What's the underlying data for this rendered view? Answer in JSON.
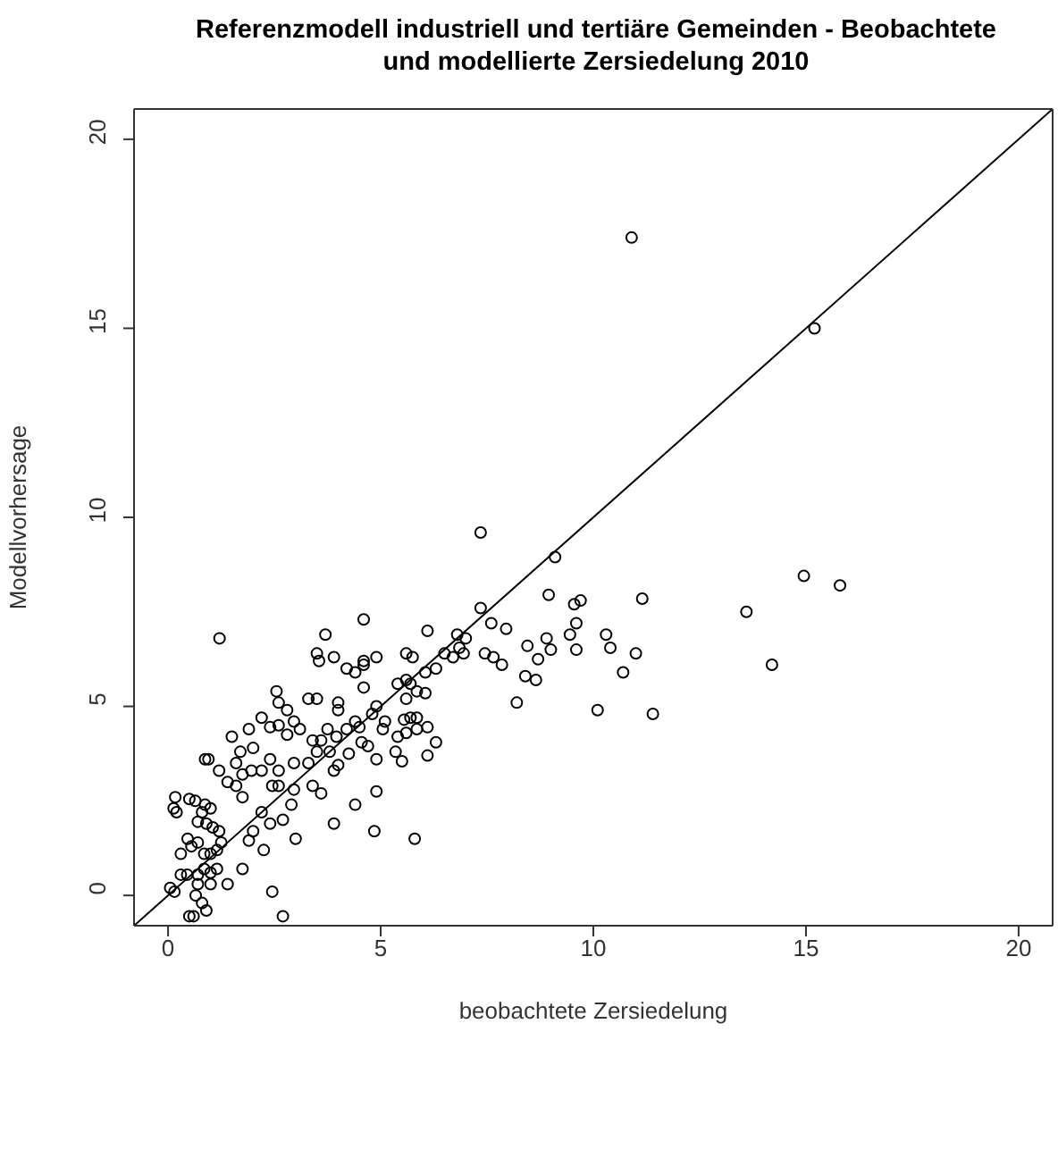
{
  "chart_data": {
    "type": "scatter",
    "title": "Referenzmodell industriell und tertiäre Gemeinden - Beobachtete\nund modellierte Zersiedelung 2010",
    "xlabel": "beobachtete Zersiedelung",
    "ylabel": "Modellvorhersage",
    "xlim": [
      -0.8,
      20.8
    ],
    "ylim": [
      -0.8,
      20.8
    ],
    "xticks": [
      0,
      5,
      10,
      15,
      20
    ],
    "yticks": [
      0,
      5,
      10,
      15,
      20
    ],
    "marker": "circle",
    "series": [
      {
        "color": "#000000",
        "x": [
          1.21,
          3.7,
          4.6,
          3.5,
          3.55,
          3.9,
          4.2,
          4.4,
          4.6,
          2.55,
          2.6,
          2.8,
          3.3,
          3.5,
          4.0,
          4.0,
          4.6,
          1.9,
          2.2,
          2.4,
          2.6,
          2.8,
          2.96,
          3.1,
          3.4,
          3.6,
          3.75,
          3.96,
          4.2,
          4.4,
          1.5,
          1.7,
          1.6,
          0.87,
          0.95,
          1.2,
          2.0,
          1.96,
          2.2,
          2.4,
          2.6,
          2.96,
          3.3,
          3.5,
          3.8,
          4.0,
          4.25,
          3.9,
          1.4,
          1.75,
          1.6,
          1.75,
          2.45,
          2.6,
          2.96,
          3.4,
          3.6,
          4.4,
          3.9,
          2.2,
          2.4,
          2.7,
          2.9,
          3.0,
          2.0,
          2.25,
          1.9,
          1.75,
          1.4,
          2.45,
          2.7,
          0.17,
          0.13,
          0.2,
          0.5,
          0.64,
          0.87,
          0.8,
          1.0,
          0.7,
          0.9,
          1.05,
          1.2,
          0.46,
          0.3,
          0.55,
          0.7,
          0.85,
          1.0,
          1.15,
          1.25,
          0.3,
          0.45,
          0.7,
          0.85,
          1.0,
          1.15,
          0.05,
          0.15,
          0.65,
          0.8,
          0.7,
          1.0,
          0.5,
          0.6,
          0.9,
          7.35,
          9.1,
          8.95,
          9.55,
          9.7,
          9.6,
          9.45,
          9.6,
          7.35,
          7.6,
          7.95,
          6.1,
          6.8,
          7.0,
          6.85,
          6.95,
          6.7,
          6.5,
          6.3,
          7.45,
          7.65,
          7.85,
          8.45,
          8.7,
          8.9,
          9.0,
          8.4,
          8.65,
          8.2,
          5.6,
          5.75,
          6.05,
          4.6,
          4.9,
          5.4,
          5.6,
          5.7,
          5.6,
          5.85,
          6.05,
          4.9,
          4.8,
          4.5,
          5.55,
          5.7,
          5.85,
          5.1,
          5.05,
          5.4,
          5.6,
          5.85,
          6.1,
          4.55,
          4.7,
          6.3,
          6.1,
          5.35,
          5.5,
          4.9,
          4.9,
          4.85,
          5.8,
          10.1,
          10.9,
          15.2,
          14.95,
          15.8,
          11.15,
          13.6,
          10.3,
          10.4,
          11.0,
          10.7,
          14.2,
          11.4
        ],
        "values": [
          6.8,
          6.9,
          7.3,
          6.4,
          6.2,
          6.3,
          6.0,
          5.9,
          6.2,
          5.4,
          5.1,
          4.9,
          5.2,
          5.2,
          5.1,
          4.9,
          5.5,
          4.4,
          4.7,
          4.45,
          4.5,
          4.25,
          4.6,
          4.4,
          4.1,
          4.1,
          4.4,
          4.2,
          4.4,
          4.6,
          4.2,
          3.8,
          3.5,
          3.6,
          3.6,
          3.3,
          3.9,
          3.3,
          3.3,
          3.6,
          3.3,
          3.5,
          3.5,
          3.8,
          3.8,
          3.45,
          3.75,
          3.3,
          3.0,
          3.2,
          2.9,
          2.6,
          2.9,
          2.9,
          2.8,
          2.9,
          2.7,
          2.4,
          1.9,
          2.2,
          1.9,
          2.0,
          2.4,
          1.5,
          1.7,
          1.2,
          1.45,
          0.7,
          0.3,
          0.1,
          -0.55,
          2.6,
          2.3,
          2.2,
          2.55,
          2.5,
          2.4,
          2.2,
          2.3,
          1.95,
          1.9,
          1.8,
          1.7,
          1.5,
          1.1,
          1.3,
          1.4,
          1.1,
          1.1,
          1.2,
          1.4,
          0.55,
          0.55,
          0.55,
          0.7,
          0.6,
          0.7,
          0.2,
          0.1,
          0.0,
          -0.2,
          0.3,
          0.3,
          -0.55,
          -0.55,
          -0.4,
          9.6,
          8.95,
          7.95,
          7.7,
          7.8,
          7.2,
          6.9,
          6.5,
          7.6,
          7.2,
          7.05,
          7.0,
          6.9,
          6.8,
          6.55,
          6.4,
          6.3,
          6.4,
          6.0,
          6.4,
          6.3,
          6.1,
          6.6,
          6.25,
          6.8,
          6.5,
          5.8,
          5.7,
          5.1,
          6.4,
          6.3,
          5.9,
          6.1,
          6.3,
          5.6,
          5.7,
          5.6,
          5.2,
          5.4,
          5.35,
          5.0,
          4.8,
          4.45,
          4.65,
          4.7,
          4.7,
          4.6,
          4.4,
          4.2,
          4.3,
          4.4,
          4.45,
          4.05,
          3.95,
          4.05,
          3.7,
          3.8,
          3.55,
          3.6,
          2.75,
          1.7,
          1.5,
          4.9,
          17.4,
          15.0,
          8.45,
          8.2,
          7.85,
          7.5,
          6.9,
          6.55,
          6.4,
          5.9,
          6.1,
          4.8
        ]
      },
      {
        "type": "line",
        "marker": "none",
        "color": "#000000",
        "x": [
          -0.8,
          20.8
        ],
        "values": [
          -0.8,
          20.8
        ]
      }
    ]
  }
}
